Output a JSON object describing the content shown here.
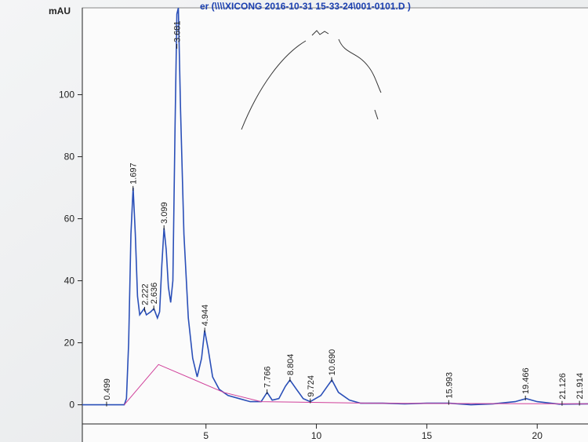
{
  "chart_data": {
    "type": "line",
    "title": "er (\\\\\\\\XICONG 2016-10-31 15-33-24\\001-0101.D )",
    "y_label": "mAU",
    "xlim": [
      -0.6,
      22.3
    ],
    "ylim": [
      -12,
      128
    ],
    "xticks": [
      5,
      10,
      15,
      20
    ],
    "yticks": [
      0,
      20,
      40,
      60,
      80,
      100
    ],
    "grid": false,
    "series": [
      {
        "color": "#2a4fb8",
        "x": [
          -0.6,
          1.3,
          1.4,
          1.5,
          1.6,
          1.7,
          1.8,
          1.9,
          2.0,
          2.2,
          2.3,
          2.5,
          2.64,
          2.8,
          2.9,
          3.0,
          3.1,
          3.2,
          3.3,
          3.4,
          3.5,
          3.6,
          3.68,
          3.75,
          3.85,
          4.0,
          4.2,
          4.4,
          4.6,
          4.8,
          4.94,
          5.1,
          5.3,
          5.6,
          6.0,
          6.5,
          7.0,
          7.5,
          7.77,
          8.0,
          8.3,
          8.6,
          8.8,
          9.1,
          9.4,
          9.72,
          10.2,
          10.5,
          10.7,
          11.0,
          11.5,
          12.0,
          13.0,
          14.0,
          15.0,
          16.0,
          17.0,
          18.0,
          19.0,
          19.5,
          20.0,
          21.0,
          22.3
        ],
        "values": [
          0,
          0,
          2,
          20,
          55,
          70,
          55,
          35,
          29,
          31,
          29,
          30,
          31,
          28,
          30,
          45,
          57,
          50,
          38,
          33,
          40,
          90,
          126,
          128,
          95,
          55,
          28,
          15,
          9,
          15,
          24,
          18,
          9,
          5,
          3,
          2,
          1,
          1,
          4,
          1.5,
          2,
          6,
          8,
          5,
          2,
          1,
          3,
          6,
          8,
          4,
          1.5,
          0.5,
          0.5,
          0.3,
          0.5,
          0.5,
          0,
          0.3,
          1,
          2,
          1,
          0.2,
          0.3
        ]
      },
      {
        "color": "#d0409a",
        "x": [
          1.3,
          2.85,
          5.8,
          7.5,
          12.5,
          22.3
        ],
        "values": [
          0,
          13,
          4,
          1,
          0.5,
          0.3
        ]
      }
    ],
    "peaks": [
      {
        "x": 0.499,
        "label": "0.499"
      },
      {
        "x": 1.697,
        "label": "1.697"
      },
      {
        "x": 2.222,
        "label": "2.222"
      },
      {
        "x": 2.636,
        "label": "2.636"
      },
      {
        "x": 3.099,
        "label": "3.099"
      },
      {
        "x": 3.681,
        "label": "3.681"
      },
      {
        "x": 4.944,
        "label": "4.944"
      },
      {
        "x": 7.766,
        "label": "7.766"
      },
      {
        "x": 8.804,
        "label": "8.804"
      },
      {
        "x": 9.724,
        "label": "9.724"
      },
      {
        "x": 10.69,
        "label": "10.690"
      },
      {
        "x": 15.993,
        "label": "15.993"
      },
      {
        "x": 19.466,
        "label": "19.466"
      },
      {
        "x": 21.126,
        "label": "21.126"
      },
      {
        "x": 21.914,
        "label": "21.914"
      }
    ]
  }
}
